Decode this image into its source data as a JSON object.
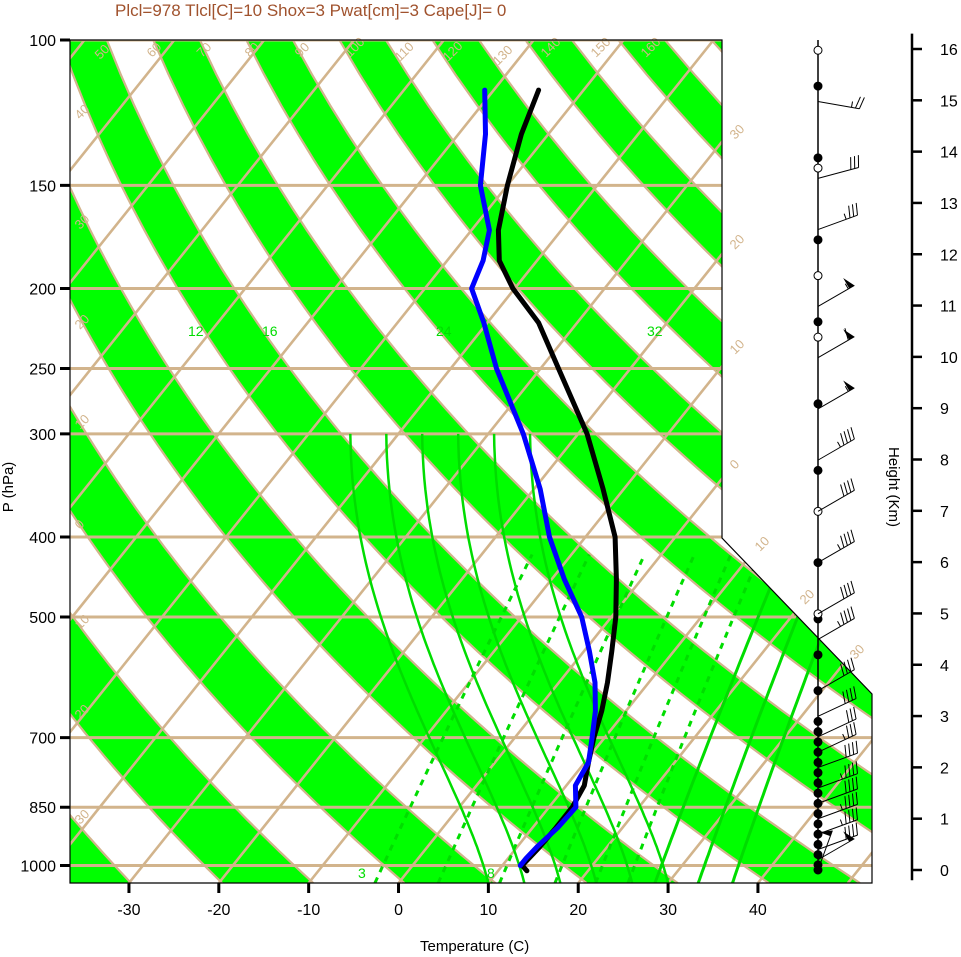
{
  "header": {
    "title": "Plcl=978 Tlcl[C]=10 Shox=3 Pwat[cm]=3 Cape[J]= 0"
  },
  "colors": {
    "band_green": "#00ff00",
    "tan": "#d2b48c",
    "mixing_ratio": "#00dd00",
    "temperature": "#000000",
    "dewpoint": "#0000ff",
    "title": "#a0522d"
  },
  "chart_data": {
    "type": "line",
    "xlabel": "Temperature (C)",
    "ylabel": "P (hPa)",
    "y2label": "Height (Km)",
    "x_ticks": [
      -30,
      -20,
      -10,
      0,
      10,
      20,
      30,
      40
    ],
    "p_ticks": [
      100,
      150,
      200,
      250,
      300,
      400,
      500,
      700,
      850,
      1000
    ],
    "height_ticks": [
      0,
      1,
      2,
      3,
      4,
      5,
      6,
      7,
      8,
      9,
      10,
      11,
      12,
      13,
      14,
      15,
      16
    ],
    "xlim": [
      -33,
      36
    ],
    "plim": [
      1050,
      100
    ],
    "isotherm_labels": [
      "50",
      "60",
      "70",
      "80",
      "90",
      "100",
      "110",
      "120",
      "130",
      "140",
      "150",
      "160",
      "30",
      "20",
      "10",
      "0",
      "10",
      "20",
      "30",
      "40",
      "30",
      "20",
      "10",
      "0",
      "10",
      "20",
      "30"
    ],
    "mixing_ratio_labels": [
      "12",
      "16",
      "24",
      "32",
      "3",
      "8"
    ],
    "series": [
      {
        "kind": "temperature",
        "p": [
          1015,
          1000,
          950,
          900,
          850,
          800,
          750,
          700,
          650,
          600,
          550,
          500,
          450,
          400,
          350,
          300,
          250,
          220,
          200,
          185,
          170,
          150,
          130,
          115
        ],
        "t": [
          13.2,
          12.2,
          12.5,
          12.6,
          12.6,
          12.0,
          10.4,
          8.8,
          7.3,
          5.4,
          3.1,
          0.5,
          -2.8,
          -6.7,
          -12.3,
          -19.0,
          -28.0,
          -34.3,
          -40.2,
          -44.2,
          -47.0,
          -50.0,
          -53.0,
          -55.0
        ]
      },
      {
        "kind": "dewpoint",
        "p": [
          1000,
          980,
          950,
          900,
          850,
          800,
          750,
          700,
          650,
          600,
          550,
          500,
          450,
          400,
          350,
          300,
          250,
          220,
          200,
          185,
          170,
          150,
          130,
          115
        ],
        "t": [
          12.0,
          12.0,
          12.2,
          12.8,
          13.0,
          11.0,
          10.4,
          8.6,
          6.6,
          4.0,
          0.6,
          -3.3,
          -8.6,
          -14.0,
          -19.3,
          -26.1,
          -34.9,
          -40.4,
          -44.8,
          -46.0,
          -48.0,
          -53.0,
          -57.0,
          -61.0
        ]
      }
    ],
    "wind_barbs_km": [
      {
        "z": 0.0,
        "spd": 50,
        "dir": 200
      },
      {
        "z": 0.2,
        "spd": 50,
        "dir": 240
      },
      {
        "z": 0.4,
        "spd": 40,
        "dir": 250
      },
      {
        "z": 0.7,
        "spd": 45,
        "dir": 250
      },
      {
        "z": 1.0,
        "spd": 45,
        "dir": 250
      },
      {
        "z": 1.3,
        "spd": 40,
        "dir": 250
      },
      {
        "z": 1.6,
        "spd": 45,
        "dir": 250
      },
      {
        "z": 2.0,
        "spd": 40,
        "dir": 250
      },
      {
        "z": 2.3,
        "spd": 35,
        "dir": 245
      },
      {
        "z": 2.6,
        "spd": 30,
        "dir": 245
      },
      {
        "z": 3.0,
        "spd": 40,
        "dir": 245
      },
      {
        "z": 3.5,
        "spd": 40,
        "dir": 240
      },
      {
        "z": 4.5,
        "spd": 45,
        "dir": 240
      },
      {
        "z": 5.0,
        "spd": 40,
        "dir": 240
      },
      {
        "z": 6.0,
        "spd": 45,
        "dir": 240
      },
      {
        "z": 7.0,
        "spd": 40,
        "dir": 240
      },
      {
        "z": 8.0,
        "spd": 45,
        "dir": 240
      },
      {
        "z": 9.0,
        "spd": 55,
        "dir": 240
      },
      {
        "z": 10.0,
        "spd": 60,
        "dir": 240
      },
      {
        "z": 11.0,
        "spd": 55,
        "dir": 240
      },
      {
        "z": 12.5,
        "spd": 35,
        "dir": 250
      },
      {
        "z": 13.5,
        "spd": 30,
        "dir": 255
      },
      {
        "z": 15.0,
        "spd": 25,
        "dir": 280
      }
    ],
    "dots_km": [
      {
        "z": 0.0,
        "filled": true
      },
      {
        "z": 0.1,
        "filled": true
      },
      {
        "z": 0.3,
        "filled": true
      },
      {
        "z": 0.5,
        "filled": true
      },
      {
        "z": 0.7,
        "filled": true
      },
      {
        "z": 0.9,
        "filled": true
      },
      {
        "z": 1.1,
        "filled": true
      },
      {
        "z": 1.3,
        "filled": true
      },
      {
        "z": 1.5,
        "filled": true
      },
      {
        "z": 1.7,
        "filled": true
      },
      {
        "z": 1.9,
        "filled": true
      },
      {
        "z": 2.1,
        "filled": true
      },
      {
        "z": 2.3,
        "filled": true
      },
      {
        "z": 2.5,
        "filled": true
      },
      {
        "z": 2.7,
        "filled": true
      },
      {
        "z": 2.9,
        "filled": true
      },
      {
        "z": 3.5,
        "filled": true
      },
      {
        "z": 4.2,
        "filled": true
      },
      {
        "z": 4.9,
        "filled": true
      },
      {
        "z": 5.0,
        "filled": false
      },
      {
        "z": 6.0,
        "filled": true
      },
      {
        "z": 7.0,
        "filled": false
      },
      {
        "z": 7.8,
        "filled": true
      },
      {
        "z": 9.1,
        "filled": true
      },
      {
        "z": 10.4,
        "filled": false
      },
      {
        "z": 10.7,
        "filled": true
      },
      {
        "z": 11.6,
        "filled": false
      },
      {
        "z": 12.3,
        "filled": true
      },
      {
        "z": 13.7,
        "filled": false
      },
      {
        "z": 13.9,
        "filled": true
      },
      {
        "z": 15.3,
        "filled": true
      },
      {
        "z": 16.0,
        "filled": false
      }
    ]
  }
}
